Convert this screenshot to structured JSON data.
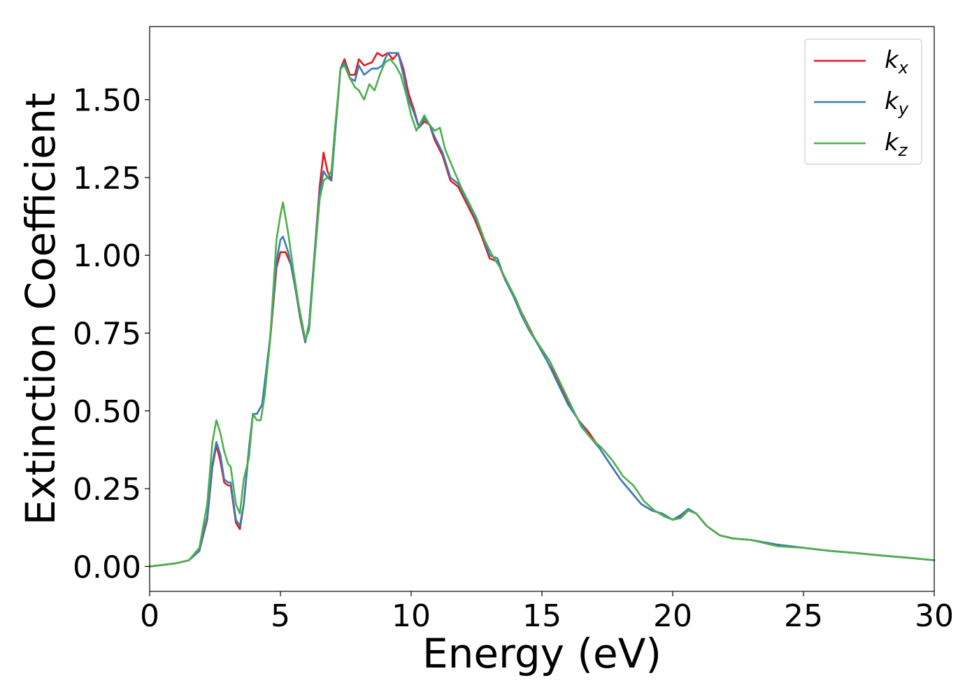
{
  "chart_data": {
    "type": "line",
    "xlabel": "Energy (eV)",
    "ylabel": "Extinction Coefficient",
    "xlim": [
      0,
      30
    ],
    "ylim": [
      -0.08,
      1.735
    ],
    "xticks": [
      0,
      5,
      10,
      15,
      20,
      25,
      30
    ],
    "xtick_labels": [
      "0",
      "5",
      "10",
      "15",
      "20",
      "25",
      "30"
    ],
    "yticks": [
      0,
      0.25,
      0.5,
      0.75,
      1.0,
      1.25,
      1.5
    ],
    "ytick_labels": [
      "0.00",
      "0.25",
      "0.50",
      "0.75",
      "1.00",
      "1.25",
      "1.50"
    ],
    "grid": false,
    "legend_position": "top-right",
    "series": [
      {
        "name": "k_x",
        "base": "k",
        "sub": "x",
        "color": "#e41a1c",
        "points": [
          [
            0,
            0
          ],
          [
            1,
            0.01
          ],
          [
            1.5,
            0.02
          ],
          [
            1.9,
            0.05
          ],
          [
            2.2,
            0.15
          ],
          [
            2.4,
            0.32
          ],
          [
            2.55,
            0.39
          ],
          [
            2.7,
            0.34
          ],
          [
            2.85,
            0.27
          ],
          [
            3.0,
            0.26
          ],
          [
            3.1,
            0.26
          ],
          [
            3.3,
            0.14
          ],
          [
            3.45,
            0.12
          ],
          [
            3.6,
            0.2
          ],
          [
            3.8,
            0.38
          ],
          [
            3.95,
            0.49
          ],
          [
            4.1,
            0.49
          ],
          [
            4.3,
            0.52
          ],
          [
            4.6,
            0.72
          ],
          [
            4.85,
            0.96
          ],
          [
            5.0,
            1.01
          ],
          [
            5.2,
            1.01
          ],
          [
            5.4,
            0.97
          ],
          [
            5.6,
            0.88
          ],
          [
            5.75,
            0.8
          ],
          [
            5.95,
            0.72
          ],
          [
            6.1,
            0.78
          ],
          [
            6.3,
            1.0
          ],
          [
            6.5,
            1.22
          ],
          [
            6.65,
            1.33
          ],
          [
            6.8,
            1.27
          ],
          [
            6.95,
            1.24
          ],
          [
            7.1,
            1.4
          ],
          [
            7.3,
            1.6
          ],
          [
            7.45,
            1.63
          ],
          [
            7.65,
            1.58
          ],
          [
            7.85,
            1.58
          ],
          [
            8.0,
            1.63
          ],
          [
            8.2,
            1.61
          ],
          [
            8.5,
            1.62
          ],
          [
            8.7,
            1.65
          ],
          [
            8.9,
            1.64
          ],
          [
            9.1,
            1.65
          ],
          [
            9.3,
            1.63
          ],
          [
            9.5,
            1.65
          ],
          [
            9.7,
            1.6
          ],
          [
            9.9,
            1.52
          ],
          [
            10.1,
            1.47
          ],
          [
            10.3,
            1.41
          ],
          [
            10.5,
            1.43
          ],
          [
            10.7,
            1.42
          ],
          [
            10.9,
            1.37
          ],
          [
            11.2,
            1.32
          ],
          [
            11.5,
            1.24
          ],
          [
            11.8,
            1.22
          ],
          [
            12.1,
            1.17
          ],
          [
            12.4,
            1.12
          ],
          [
            12.7,
            1.06
          ],
          [
            13.0,
            0.99
          ],
          [
            13.3,
            0.98
          ],
          [
            13.6,
            0.92
          ],
          [
            13.9,
            0.87
          ],
          [
            14.2,
            0.82
          ],
          [
            14.5,
            0.77
          ],
          [
            14.8,
            0.72
          ],
          [
            15.2,
            0.66
          ],
          [
            15.6,
            0.6
          ],
          [
            16.0,
            0.53
          ],
          [
            16.4,
            0.47
          ],
          [
            16.8,
            0.43
          ],
          [
            17.2,
            0.38
          ],
          [
            17.6,
            0.33
          ],
          [
            18.0,
            0.28
          ],
          [
            18.4,
            0.24
          ],
          [
            18.8,
            0.2
          ],
          [
            19.2,
            0.18
          ],
          [
            19.6,
            0.17
          ],
          [
            20.0,
            0.15
          ],
          [
            20.3,
            0.16
          ],
          [
            20.6,
            0.18
          ],
          [
            20.9,
            0.17
          ],
          [
            21.3,
            0.13
          ],
          [
            21.8,
            0.1
          ],
          [
            22.3,
            0.09
          ],
          [
            23.0,
            0.085
          ],
          [
            24.0,
            0.07
          ],
          [
            25.0,
            0.06
          ],
          [
            26.0,
            0.05
          ],
          [
            27.0,
            0.043
          ],
          [
            28.0,
            0.035
          ],
          [
            29.0,
            0.028
          ],
          [
            30.0,
            0.02
          ]
        ]
      },
      {
        "name": "k_y",
        "base": "k",
        "sub": "y",
        "color": "#377eb8",
        "points": [
          [
            0,
            0
          ],
          [
            1,
            0.01
          ],
          [
            1.5,
            0.02
          ],
          [
            1.9,
            0.05
          ],
          [
            2.2,
            0.16
          ],
          [
            2.4,
            0.33
          ],
          [
            2.55,
            0.4
          ],
          [
            2.7,
            0.36
          ],
          [
            2.85,
            0.28
          ],
          [
            3.0,
            0.27
          ],
          [
            3.1,
            0.27
          ],
          [
            3.3,
            0.15
          ],
          [
            3.45,
            0.13
          ],
          [
            3.6,
            0.2
          ],
          [
            3.8,
            0.38
          ],
          [
            3.95,
            0.49
          ],
          [
            4.1,
            0.49
          ],
          [
            4.3,
            0.52
          ],
          [
            4.6,
            0.73
          ],
          [
            4.85,
            0.98
          ],
          [
            5.0,
            1.05
          ],
          [
            5.1,
            1.06
          ],
          [
            5.3,
            1.01
          ],
          [
            5.5,
            0.93
          ],
          [
            5.7,
            0.83
          ],
          [
            5.95,
            0.72
          ],
          [
            6.1,
            0.78
          ],
          [
            6.3,
            1.0
          ],
          [
            6.5,
            1.2
          ],
          [
            6.65,
            1.27
          ],
          [
            6.8,
            1.25
          ],
          [
            6.95,
            1.24
          ],
          [
            7.1,
            1.4
          ],
          [
            7.3,
            1.6
          ],
          [
            7.45,
            1.62
          ],
          [
            7.65,
            1.57
          ],
          [
            7.85,
            1.56
          ],
          [
            8.0,
            1.61
          ],
          [
            8.2,
            1.58
          ],
          [
            8.5,
            1.6
          ],
          [
            8.7,
            1.6
          ],
          [
            8.9,
            1.61
          ],
          [
            9.1,
            1.65
          ],
          [
            9.3,
            1.65
          ],
          [
            9.5,
            1.65
          ],
          [
            9.7,
            1.58
          ],
          [
            9.9,
            1.5
          ],
          [
            10.1,
            1.46
          ],
          [
            10.3,
            1.41
          ],
          [
            10.5,
            1.44
          ],
          [
            10.7,
            1.42
          ],
          [
            10.9,
            1.38
          ],
          [
            11.2,
            1.33
          ],
          [
            11.5,
            1.25
          ],
          [
            11.8,
            1.23
          ],
          [
            12.1,
            1.18
          ],
          [
            12.4,
            1.13
          ],
          [
            12.7,
            1.07
          ],
          [
            13.0,
            1.0
          ],
          [
            13.3,
            0.99
          ],
          [
            13.6,
            0.92
          ],
          [
            13.9,
            0.87
          ],
          [
            14.2,
            0.81
          ],
          [
            14.5,
            0.76
          ],
          [
            14.8,
            0.72
          ],
          [
            15.2,
            0.66
          ],
          [
            15.6,
            0.59
          ],
          [
            16.0,
            0.52
          ],
          [
            16.4,
            0.47
          ],
          [
            16.8,
            0.42
          ],
          [
            17.2,
            0.38
          ],
          [
            17.6,
            0.33
          ],
          [
            18.0,
            0.28
          ],
          [
            18.4,
            0.24
          ],
          [
            18.8,
            0.2
          ],
          [
            19.2,
            0.18
          ],
          [
            19.6,
            0.17
          ],
          [
            20.0,
            0.15
          ],
          [
            20.3,
            0.165
          ],
          [
            20.6,
            0.185
          ],
          [
            20.9,
            0.17
          ],
          [
            21.3,
            0.13
          ],
          [
            21.8,
            0.1
          ],
          [
            22.3,
            0.09
          ],
          [
            23.0,
            0.085
          ],
          [
            24.0,
            0.07
          ],
          [
            25.0,
            0.06
          ],
          [
            26.0,
            0.05
          ],
          [
            27.0,
            0.043
          ],
          [
            28.0,
            0.035
          ],
          [
            29.0,
            0.028
          ],
          [
            30.0,
            0.02
          ]
        ]
      },
      {
        "name": "k_z",
        "base": "k",
        "sub": "z",
        "color": "#4daf4a",
        "points": [
          [
            0,
            0
          ],
          [
            1,
            0.01
          ],
          [
            1.5,
            0.02
          ],
          [
            1.9,
            0.06
          ],
          [
            2.2,
            0.2
          ],
          [
            2.4,
            0.4
          ],
          [
            2.55,
            0.47
          ],
          [
            2.7,
            0.43
          ],
          [
            2.85,
            0.37
          ],
          [
            3.0,
            0.33
          ],
          [
            3.1,
            0.32
          ],
          [
            3.3,
            0.2
          ],
          [
            3.45,
            0.17
          ],
          [
            3.6,
            0.28
          ],
          [
            3.8,
            0.35
          ],
          [
            3.95,
            0.49
          ],
          [
            4.1,
            0.47
          ],
          [
            4.25,
            0.47
          ],
          [
            4.4,
            0.55
          ],
          [
            4.6,
            0.72
          ],
          [
            4.85,
            1.05
          ],
          [
            5.0,
            1.13
          ],
          [
            5.1,
            1.17
          ],
          [
            5.3,
            1.07
          ],
          [
            5.5,
            0.95
          ],
          [
            5.7,
            0.84
          ],
          [
            5.95,
            0.73
          ],
          [
            6.1,
            0.76
          ],
          [
            6.3,
            0.98
          ],
          [
            6.5,
            1.18
          ],
          [
            6.65,
            1.24
          ],
          [
            6.8,
            1.25
          ],
          [
            6.95,
            1.27
          ],
          [
            7.1,
            1.42
          ],
          [
            7.3,
            1.6
          ],
          [
            7.45,
            1.61
          ],
          [
            7.65,
            1.57
          ],
          [
            7.85,
            1.54
          ],
          [
            8.0,
            1.53
          ],
          [
            8.2,
            1.5
          ],
          [
            8.4,
            1.55
          ],
          [
            8.6,
            1.53
          ],
          [
            8.8,
            1.58
          ],
          [
            9.0,
            1.62
          ],
          [
            9.2,
            1.63
          ],
          [
            9.4,
            1.61
          ],
          [
            9.6,
            1.58
          ],
          [
            9.8,
            1.52
          ],
          [
            10.0,
            1.45
          ],
          [
            10.2,
            1.4
          ],
          [
            10.5,
            1.45
          ],
          [
            10.7,
            1.42
          ],
          [
            10.9,
            1.4
          ],
          [
            11.1,
            1.41
          ],
          [
            11.3,
            1.34
          ],
          [
            11.6,
            1.28
          ],
          [
            11.9,
            1.22
          ],
          [
            12.2,
            1.17
          ],
          [
            12.5,
            1.12
          ],
          [
            12.8,
            1.05
          ],
          [
            13.1,
            1.0
          ],
          [
            13.4,
            0.96
          ],
          [
            13.7,
            0.91
          ],
          [
            14.0,
            0.86
          ],
          [
            14.3,
            0.8
          ],
          [
            14.6,
            0.75
          ],
          [
            14.9,
            0.71
          ],
          [
            15.3,
            0.66
          ],
          [
            15.7,
            0.59
          ],
          [
            16.1,
            0.52
          ],
          [
            16.5,
            0.45
          ],
          [
            16.9,
            0.41
          ],
          [
            17.3,
            0.38
          ],
          [
            17.7,
            0.34
          ],
          [
            18.1,
            0.29
          ],
          [
            18.5,
            0.26
          ],
          [
            18.9,
            0.21
          ],
          [
            19.3,
            0.18
          ],
          [
            19.7,
            0.16
          ],
          [
            20.0,
            0.15
          ],
          [
            20.3,
            0.155
          ],
          [
            20.6,
            0.18
          ],
          [
            20.9,
            0.17
          ],
          [
            21.3,
            0.13
          ],
          [
            21.8,
            0.1
          ],
          [
            22.3,
            0.09
          ],
          [
            23.0,
            0.085
          ],
          [
            24.0,
            0.065
          ],
          [
            25.0,
            0.06
          ],
          [
            26.0,
            0.05
          ],
          [
            27.0,
            0.043
          ],
          [
            28.0,
            0.035
          ],
          [
            29.0,
            0.028
          ],
          [
            30.0,
            0.02
          ]
        ]
      }
    ]
  }
}
